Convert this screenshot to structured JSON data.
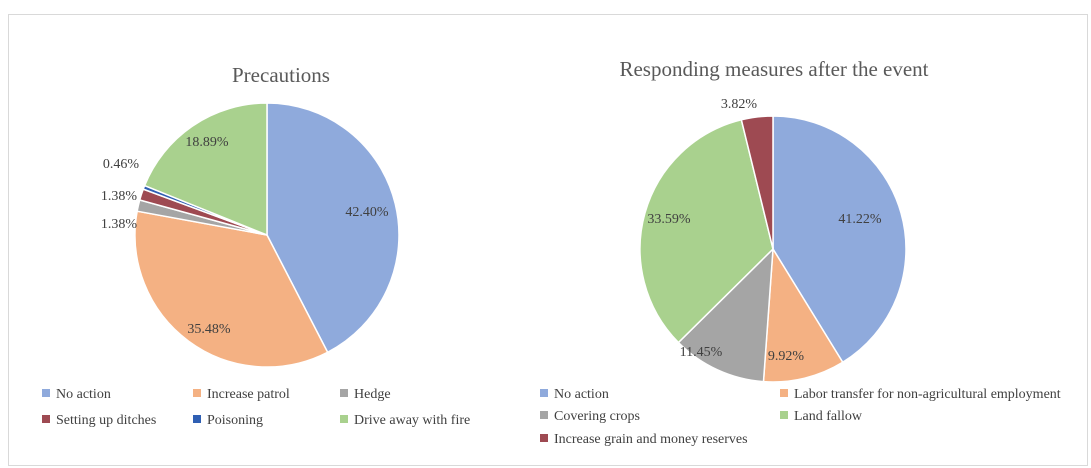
{
  "chart_data": [
    {
      "type": "pie",
      "title": "Precautions",
      "slices": [
        {
          "label": "No action",
          "value": 42.4,
          "display": "42.40%",
          "color": "#8faadc"
        },
        {
          "label": "Increase patrol",
          "value": 35.48,
          "display": "35.48%",
          "color": "#f4b183"
        },
        {
          "label": "Hedge",
          "value": 1.38,
          "display": "1.38%",
          "color": "#a5a5a5"
        },
        {
          "label": "Setting up ditches",
          "value": 1.38,
          "display": "1.38%",
          "color": "#9e4a52"
        },
        {
          "label": "Poisoning",
          "value": 0.46,
          "display": "0.46%",
          "color": "#2f5fb3"
        },
        {
          "label": "Drive away with fire",
          "value": 18.89,
          "display": "18.89%",
          "color": "#a9d18e"
        }
      ],
      "legend_placement": "bottom"
    },
    {
      "type": "pie",
      "title": "Responding measures after the event",
      "slices": [
        {
          "label": "No action",
          "value": 41.22,
          "display": "41.22%",
          "color": "#8faadc"
        },
        {
          "label": "Labor transfer for non-agricultural employment",
          "value": 9.92,
          "display": "9.92%",
          "color": "#f4b183"
        },
        {
          "label": "Covering crops",
          "value": 11.45,
          "display": "11.45%",
          "color": "#a5a5a5"
        },
        {
          "label": "Land fallow",
          "value": 33.59,
          "display": "33.59%",
          "color": "#a9d18e"
        },
        {
          "label": "Increase grain and money reserves",
          "value": 3.82,
          "display": "3.82%",
          "color": "#9e4a52"
        }
      ],
      "legend_placement": "bottom"
    }
  ]
}
